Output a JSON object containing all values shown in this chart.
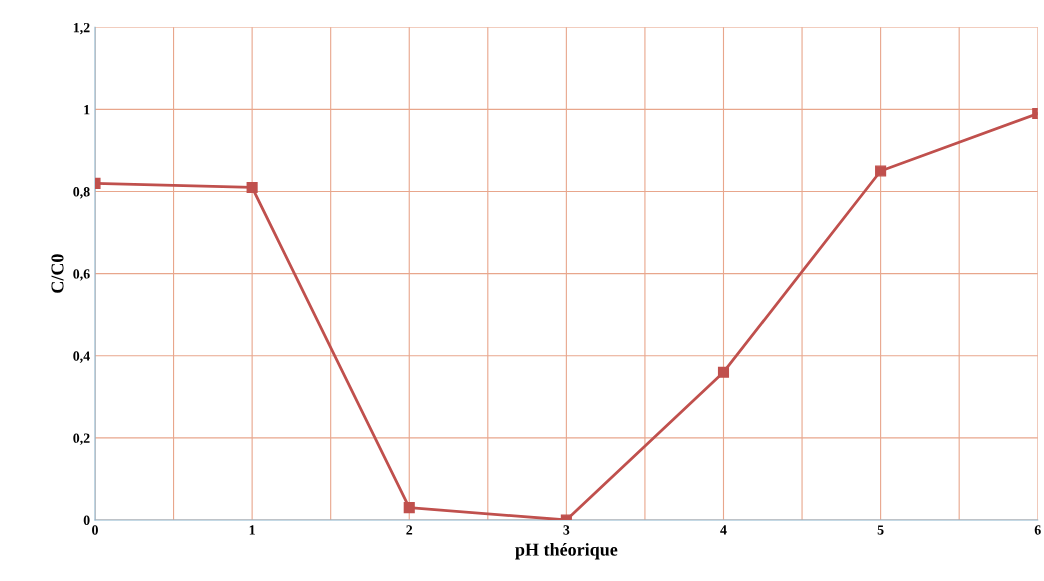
{
  "chart_data": {
    "type": "line",
    "xlabel": "pH théorique",
    "ylabel": "C/C0",
    "x": [
      0,
      1,
      2,
      3,
      4,
      5,
      6
    ],
    "series": [
      {
        "color": "#c0504d",
        "values": [
          0.82,
          0.81,
          0.03,
          0.0,
          0.36,
          0.85,
          0.99
        ]
      }
    ],
    "xlim": [
      0,
      6
    ],
    "xticks": [
      0,
      {
        "value": 0.5,
        "label": null
      },
      1,
      {
        "value": 1.5,
        "label": null
      },
      2,
      {
        "value": 2.5,
        "label": null
      },
      3,
      {
        "value": 3.5,
        "label": null
      },
      4,
      {
        "value": 4.5,
        "label": null
      },
      5,
      {
        "value": 5.5,
        "label": null
      },
      6
    ],
    "ylim": [
      0,
      1.2
    ],
    "yticks": [
      0,
      {
        "value": 0.2,
        "label": "0,2"
      },
      {
        "value": 0.4,
        "label": "0,4"
      },
      {
        "value": 0.6,
        "label": "0,6"
      },
      {
        "value": 0.8,
        "label": "0,8"
      },
      1,
      {
        "value": 1.2,
        "label": "1,2"
      }
    ],
    "grid": true,
    "marker": "square",
    "line_style": "solid"
  }
}
